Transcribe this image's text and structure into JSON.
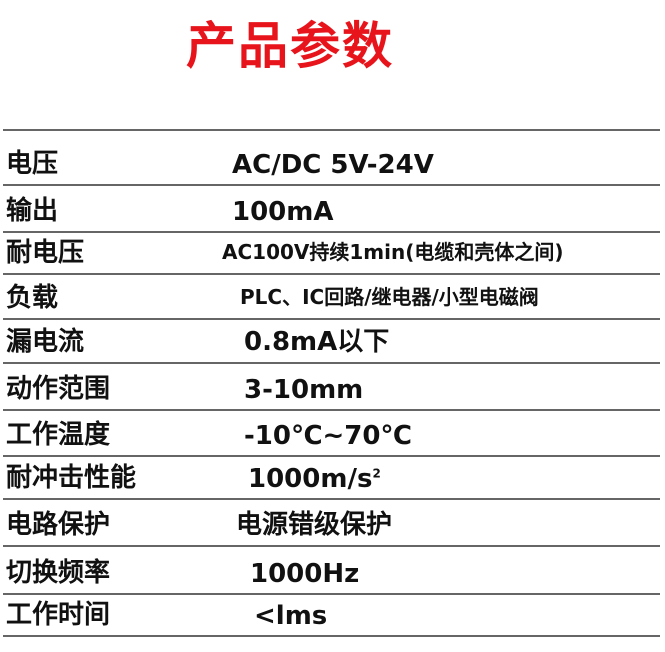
{
  "title": "产品参数",
  "title_color": "#e8141c",
  "rows": [
    {
      "label": "电压",
      "value": "AC/DC 5V-24V"
    },
    {
      "label": "输出",
      "value": "100mA"
    },
    {
      "label": "耐电压",
      "value": "AC100V持续1min(电缆和壳体之间)"
    },
    {
      "label": "负载",
      "value": "PLC、IC回路/继电器/小型电磁阀"
    },
    {
      "label": "漏电流",
      "value": "0.8mA以下"
    },
    {
      "label": "动作范围",
      "value": "3-10mm"
    },
    {
      "label": "工作温度",
      "value": "-10℃~70℃"
    },
    {
      "label": "耐冲击性能",
      "value": "1000m/s",
      "sup": "2"
    },
    {
      "label": "电路保护",
      "value": "电源错级保护"
    },
    {
      "label": "切换频率",
      "value": "1000Hz"
    },
    {
      "label": "工作时间",
      "value": "<lms"
    }
  ]
}
